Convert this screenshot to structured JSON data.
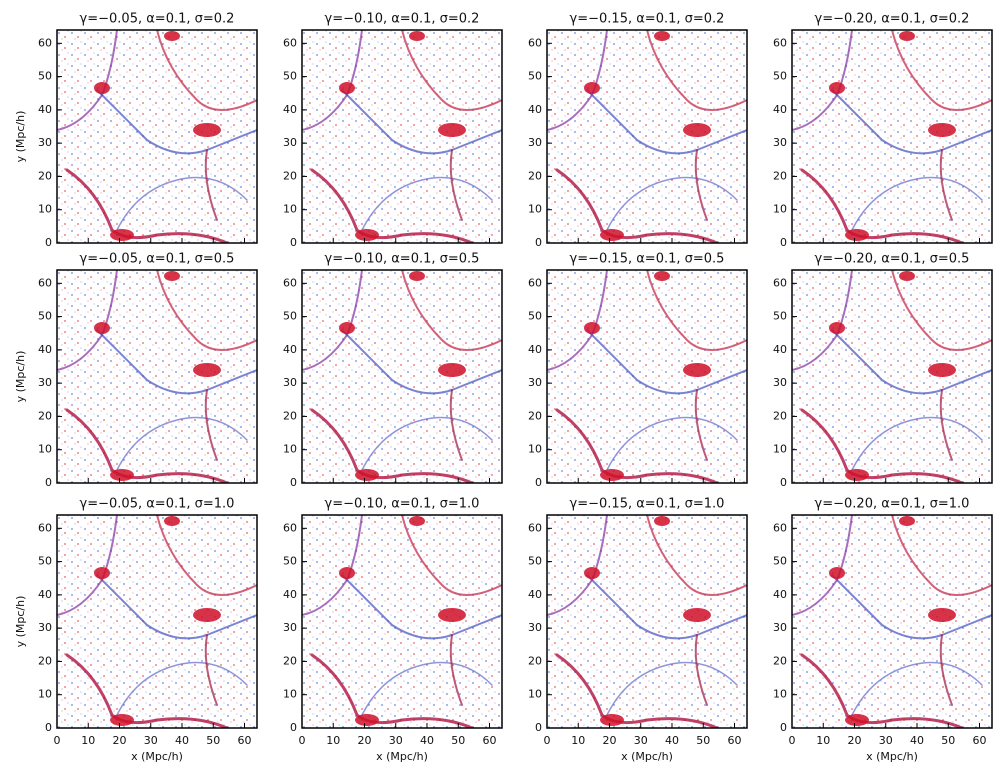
{
  "figure": {
    "xlabel": "x (Mpc/h)",
    "ylabel": "y (Mpc/h)",
    "xlim": [
      0,
      64
    ],
    "ylim": [
      0,
      64
    ],
    "xticks": [
      0,
      10,
      20,
      30,
      40,
      50,
      60
    ],
    "yticks": [
      0,
      10,
      20,
      30,
      40,
      50,
      60
    ],
    "panels": [
      {
        "title": "γ=−0.05, α=0.1, σ=0.2"
      },
      {
        "title": "γ=−0.10, α=0.1, σ=0.2"
      },
      {
        "title": "γ=−0.15, α=0.1, σ=0.2"
      },
      {
        "title": "γ=−0.20, α=0.1, σ=0.2"
      },
      {
        "title": "γ=−0.05, α=0.1, σ=0.5"
      },
      {
        "title": "γ=−0.10, α=0.1, σ=0.5"
      },
      {
        "title": "γ=−0.15, α=0.1, σ=0.5"
      },
      {
        "title": "γ=−0.20, α=0.1, σ=0.5"
      },
      {
        "title": "γ=−0.05, α=0.1, σ=1.0"
      },
      {
        "title": "γ=−0.10, α=0.1, σ=1.0"
      },
      {
        "title": "γ=−0.15, α=0.1, σ=1.0"
      },
      {
        "title": "γ=−0.20, α=0.1, σ=1.0"
      }
    ]
  }
}
